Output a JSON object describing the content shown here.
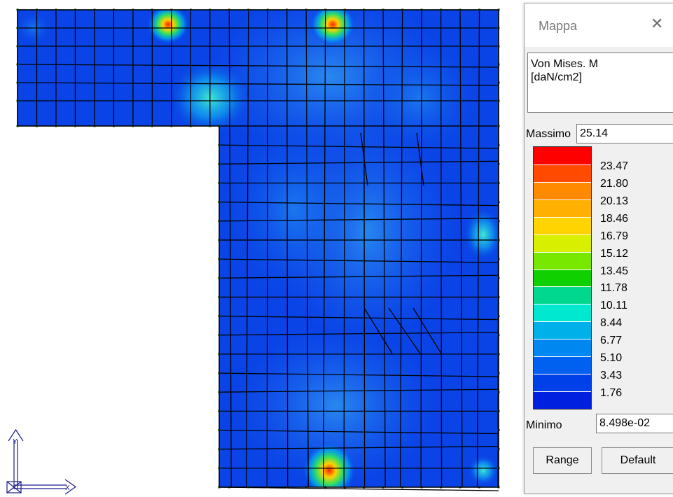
{
  "legend": {
    "title": "Mappa",
    "quantity_line1": "Von Mises. M",
    "quantity_line2": "[daN/cm2]",
    "max_label": "Massimo",
    "max_value": "25.14",
    "min_label": "Minimo",
    "min_value": "8.498e-02",
    "ticks": [
      "23.47",
      "21.80",
      "20.13",
      "18.46",
      "16.79",
      "15.12",
      "13.45",
      "11.78",
      "10.11",
      "8.44",
      "6.77",
      "5.10",
      "3.43",
      "1.76"
    ],
    "colors": [
      "#ff0000",
      "#ff4a00",
      "#ff8a00",
      "#ffb000",
      "#ffd400",
      "#d8f000",
      "#78e800",
      "#10d000",
      "#00d890",
      "#00e8d0",
      "#00b0e8",
      "#0088f0",
      "#0060f0",
      "#0040e8",
      "#0020e0"
    ],
    "range_button": "Range",
    "default_button": "Default"
  },
  "axes": {
    "y_label": "Y",
    "x_label": "X"
  },
  "colors": {
    "base_fill": "#0a44e6",
    "mesh": "#000000",
    "node": "#1a5a1a"
  }
}
